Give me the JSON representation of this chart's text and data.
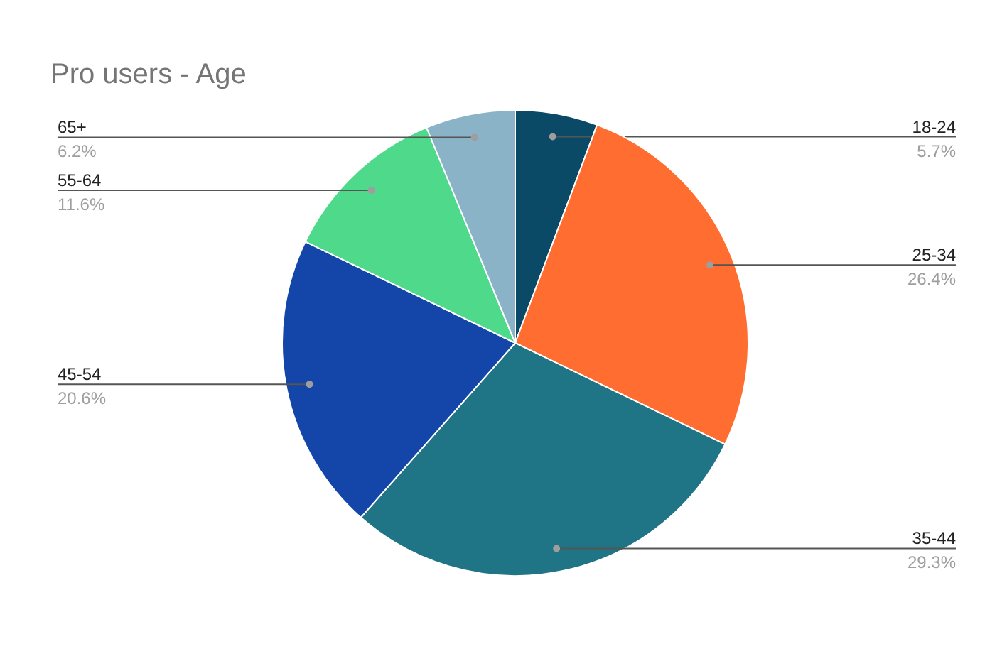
{
  "chart_data": {
    "type": "pie",
    "title": "Pro users - Age",
    "categories": [
      "18-24",
      "25-34",
      "35-44",
      "45-54",
      "55-64",
      "65+"
    ],
    "values": [
      5.7,
      26.4,
      29.3,
      20.6,
      11.6,
      6.2
    ],
    "value_labels": [
      "5.7%",
      "26.4%",
      "29.3%",
      "20.6%",
      "11.6%",
      "6.2%"
    ],
    "colors": [
      "#0a4a66",
      "#ff6d31",
      "#1f7485",
      "#1346a8",
      "#4fd98a",
      "#8ab3c8"
    ]
  }
}
